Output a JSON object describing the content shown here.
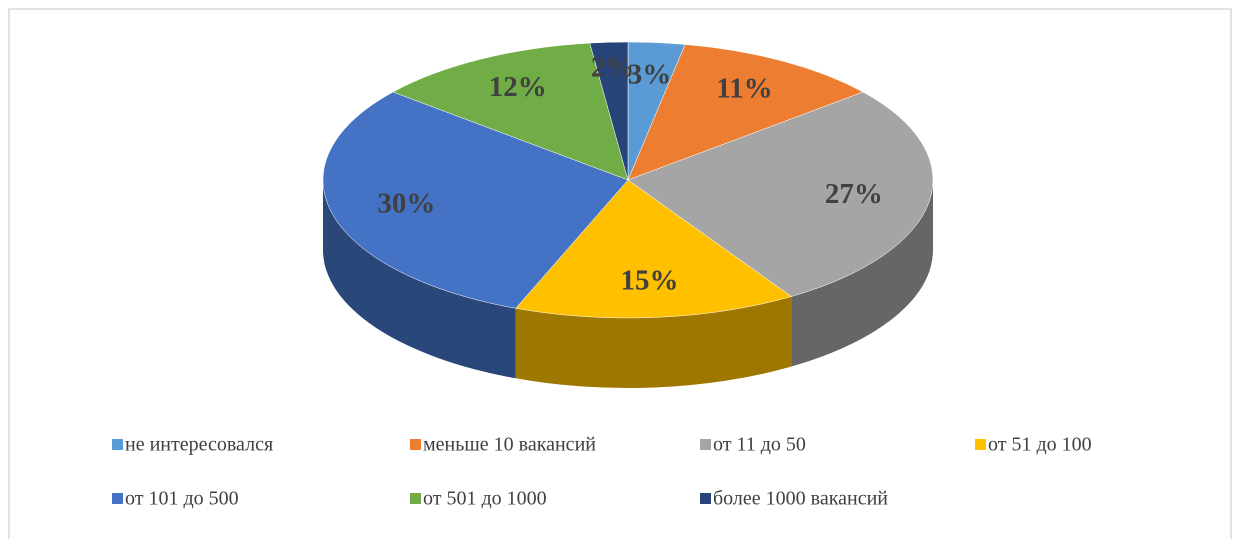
{
  "chart_data": {
    "type": "pie3d",
    "categories": [
      "не интересовался",
      "меньше 10 вакансий",
      "от 11 до 50",
      "от 51 до 100",
      "от 101 до 500",
      "от 501 до 1000",
      "более 1000 вакансий"
    ],
    "values": [
      3,
      11,
      27,
      15,
      30,
      12,
      2
    ],
    "value_labels": [
      "3%",
      "11%",
      "27%",
      "15%",
      "30%",
      "12%",
      "2%"
    ],
    "colors": [
      "#5b9bd5",
      "#ed7d31",
      "#a5a5a5",
      "#ffc000",
      "#4472c4",
      "#70ad47",
      "#264478"
    ],
    "legend": "bottom"
  }
}
